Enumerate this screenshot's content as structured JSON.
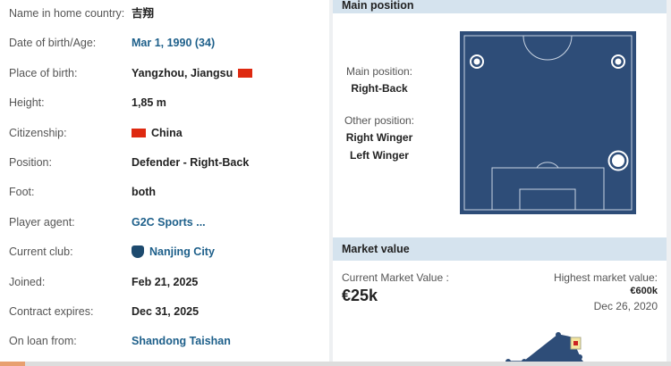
{
  "info": [
    {
      "label": "Name in home country:",
      "value": "吉翔"
    },
    {
      "label": "Date of birth/Age:",
      "value": "Mar 1, 1990 (34)",
      "link": true
    },
    {
      "label": "Place of birth:",
      "value": "Yangzhou, Jiangsu",
      "flag_after": true
    },
    {
      "label": "Height:",
      "value": "1,85 m"
    },
    {
      "label": "Citizenship:",
      "value": "China",
      "flag_before": true
    },
    {
      "label": "Position:",
      "value": "Defender - Right-Back"
    },
    {
      "label": "Foot:",
      "value": "both"
    },
    {
      "label": "Player agent:",
      "value": "G2C Sports ...",
      "link": true
    },
    {
      "label": "Current club:",
      "value": "Nanjing City",
      "link": true,
      "crest": true
    },
    {
      "label": "Joined:",
      "value": "Feb 21, 2025"
    },
    {
      "label": "Contract expires:",
      "value": "Dec 31, 2025"
    },
    {
      "label": "On loan from:",
      "value": "Shandong Taishan",
      "link": true
    }
  ],
  "main_position": {
    "title": "Main position",
    "main_label": "Main position:",
    "main_value": "Right-Back",
    "other_label": "Other position:",
    "others": [
      "Right Winger",
      "Left Winger"
    ]
  },
  "market_value": {
    "title": "Market value",
    "current_label": "Current Market Value :",
    "current_value": "€25k",
    "highest_label": "Highest market value:",
    "highest_value": "€600k",
    "highest_date": "Dec 26, 2020"
  },
  "colors": {
    "link": "#1d5f8a",
    "pitch": "#2e4d78",
    "header": "#d5e3ee",
    "flag": "#de2910"
  }
}
